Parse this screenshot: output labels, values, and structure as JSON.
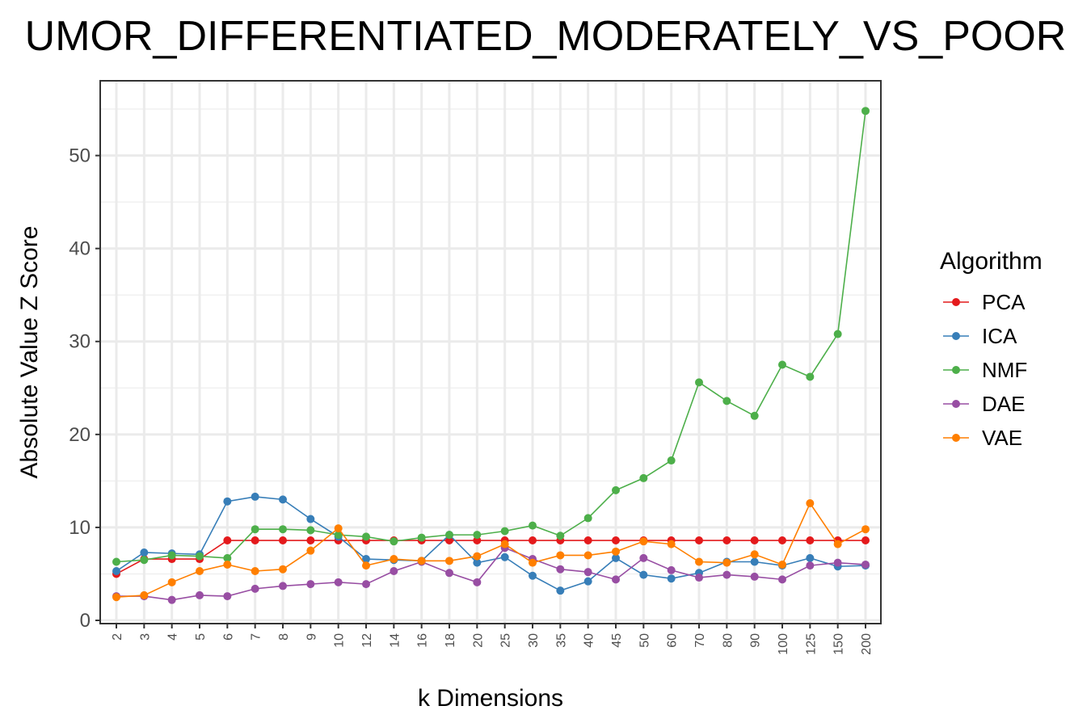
{
  "chart_data": {
    "type": "line",
    "title": "UMOR_DIFFERENTIATED_MODERATELY_VS_POOR",
    "xlabel": "k Dimensions",
    "ylabel": "Absolute Value Z Score",
    "categories": [
      "2",
      "3",
      "4",
      "5",
      "6",
      "7",
      "8",
      "9",
      "10",
      "12",
      "14",
      "16",
      "18",
      "20",
      "25",
      "30",
      "35",
      "40",
      "45",
      "50",
      "60",
      "70",
      "80",
      "90",
      "100",
      "125",
      "150",
      "200"
    ],
    "ylim": [
      0,
      57
    ],
    "yticks": [
      0,
      10,
      20,
      30,
      40,
      50
    ],
    "grid": true,
    "legend": {
      "title": "Algorithm",
      "position": "right"
    },
    "series": [
      {
        "name": "PCA",
        "color": "#e41a1c",
        "values": [
          5.0,
          6.6,
          6.6,
          6.6,
          8.6,
          8.6,
          8.6,
          8.6,
          8.6,
          8.6,
          8.6,
          8.6,
          8.6,
          8.6,
          8.6,
          8.6,
          8.6,
          8.6,
          8.6,
          8.6,
          8.6,
          8.6,
          8.6,
          8.6,
          8.6,
          8.6,
          8.6,
          8.6
        ]
      },
      {
        "name": "ICA",
        "color": "#377eb8",
        "values": [
          5.3,
          7.3,
          7.2,
          7.1,
          12.8,
          13.3,
          13.0,
          10.9,
          9.0,
          6.6,
          6.5,
          6.4,
          9.2,
          6.2,
          6.8,
          4.8,
          3.2,
          4.2,
          6.7,
          4.9,
          4.5,
          5.1,
          6.3,
          6.3,
          5.9,
          6.7,
          5.8,
          5.9
        ]
      },
      {
        "name": "NMF",
        "color": "#4daf4a",
        "values": [
          6.3,
          6.5,
          7.0,
          6.9,
          6.7,
          9.8,
          9.8,
          9.7,
          9.2,
          9.0,
          8.5,
          8.9,
          9.2,
          9.2,
          9.6,
          10.2,
          9.1,
          11.0,
          14.0,
          15.3,
          17.2,
          25.6,
          23.6,
          22.0,
          27.5,
          26.2,
          30.8,
          54.8
        ]
      },
      {
        "name": "DAE",
        "color": "#984ea3",
        "values": [
          2.6,
          2.6,
          2.2,
          2.7,
          2.6,
          3.4,
          3.7,
          3.9,
          4.1,
          3.9,
          5.3,
          6.3,
          5.1,
          4.1,
          7.8,
          6.6,
          5.5,
          5.2,
          4.4,
          6.7,
          5.4,
          4.6,
          4.9,
          4.7,
          4.4,
          5.9,
          6.2,
          6.0
        ]
      },
      {
        "name": "VAE",
        "color": "#ff7f00",
        "values": [
          2.5,
          2.7,
          4.1,
          5.3,
          6.0,
          5.3,
          5.5,
          7.5,
          9.9,
          5.9,
          6.6,
          6.4,
          6.4,
          6.9,
          8.2,
          6.2,
          7.0,
          7.0,
          7.4,
          8.5,
          8.2,
          6.3,
          6.2,
          7.1,
          6.0,
          12.6,
          8.2,
          9.8
        ]
      }
    ]
  }
}
